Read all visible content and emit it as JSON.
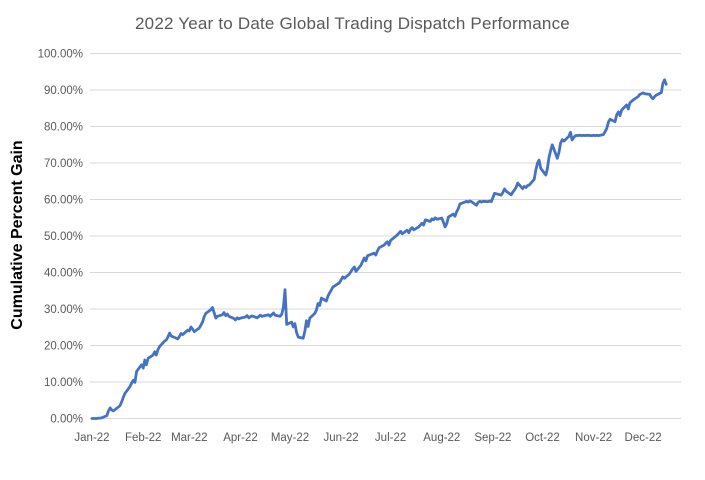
{
  "window": {
    "background_color": "#FFFFFF"
  },
  "chart_data": {
    "type": "line",
    "title": "2022 Year to Date Global Trading Dispatch Performance",
    "xlabel": "",
    "ylabel": "Cumulative Percent Gain",
    "legend": false,
    "grid": true,
    "gridline_color": "#D9D9D9",
    "title_color": "#595959",
    "tick_label_color": "#595959",
    "line_color": "#4472C4",
    "line_width": 2.8,
    "ylim": [
      0,
      100
    ],
    "y_tick_labels": [
      "0.00%",
      "10.00%",
      "20.00%",
      "30.00%",
      "40.00%",
      "50.00%",
      "60.00%",
      "70.00%",
      "80.00%",
      "90.00%",
      "100.00%"
    ],
    "x_tick_labels": [
      "Jan-22",
      "Feb-22",
      "Mar-22",
      "Apr-22",
      "May-22",
      "Jun-22",
      "Jul-22",
      "Aug-22",
      "Sep-22",
      "Oct-22",
      "Nov-22",
      "Dec-22"
    ],
    "x_tick_dates": [
      "2022-01-01",
      "2022-02-01",
      "2022-03-01",
      "2022-04-01",
      "2022-05-01",
      "2022-06-01",
      "2022-07-01",
      "2022-08-01",
      "2022-09-01",
      "2022-10-01",
      "2022-11-01",
      "2022-12-01"
    ],
    "series": [
      {
        "name": "Cumulative Percent Gain",
        "points": [
          [
            "2022-01-01",
            0.0
          ],
          [
            "2022-01-04",
            0.0
          ],
          [
            "2022-01-05",
            0.1
          ],
          [
            "2022-01-06",
            0.1
          ],
          [
            "2022-01-07",
            0.2
          ],
          [
            "2022-01-10",
            0.8
          ],
          [
            "2022-01-11",
            2.1
          ],
          [
            "2022-01-12",
            2.9
          ],
          [
            "2022-01-13",
            2.3
          ],
          [
            "2022-01-14",
            2.1
          ],
          [
            "2022-01-18",
            3.5
          ],
          [
            "2022-01-19",
            4.6
          ],
          [
            "2022-01-20",
            5.8
          ],
          [
            "2022-01-21",
            6.9
          ],
          [
            "2022-01-24",
            8.7
          ],
          [
            "2022-01-25",
            9.7
          ],
          [
            "2022-01-26",
            10.5
          ],
          [
            "2022-01-27",
            9.9
          ],
          [
            "2022-01-28",
            12.9
          ],
          [
            "2022-01-31",
            14.7
          ],
          [
            "2022-02-01",
            13.8
          ],
          [
            "2022-02-02",
            16.0
          ],
          [
            "2022-02-03",
            14.7
          ],
          [
            "2022-02-04",
            16.5
          ],
          [
            "2022-02-07",
            17.4
          ],
          [
            "2022-02-08",
            18.3
          ],
          [
            "2022-02-09",
            17.4
          ],
          [
            "2022-02-10",
            18.9
          ],
          [
            "2022-02-11",
            19.7
          ],
          [
            "2022-02-14",
            21.2
          ],
          [
            "2022-02-15",
            21.5
          ],
          [
            "2022-02-16",
            22.3
          ],
          [
            "2022-02-17",
            23.4
          ],
          [
            "2022-02-18",
            22.6
          ],
          [
            "2022-02-22",
            21.8
          ],
          [
            "2022-02-23",
            22.5
          ],
          [
            "2022-02-24",
            23.3
          ],
          [
            "2022-02-25",
            23.0
          ],
          [
            "2022-02-28",
            24.2
          ],
          [
            "2022-03-01",
            24.0
          ],
          [
            "2022-03-02",
            25.1
          ],
          [
            "2022-03-03",
            24.5
          ],
          [
            "2022-03-04",
            23.8
          ],
          [
            "2022-03-07",
            24.8
          ],
          [
            "2022-03-08",
            25.6
          ],
          [
            "2022-03-09",
            26.5
          ],
          [
            "2022-03-10",
            27.9
          ],
          [
            "2022-03-11",
            28.8
          ],
          [
            "2022-03-14",
            29.8
          ],
          [
            "2022-03-15",
            30.4
          ],
          [
            "2022-03-16",
            29.0
          ],
          [
            "2022-03-17",
            27.5
          ],
          [
            "2022-03-18",
            28.0
          ],
          [
            "2022-03-21",
            28.4
          ],
          [
            "2022-03-22",
            29.0
          ],
          [
            "2022-03-23",
            28.2
          ],
          [
            "2022-03-24",
            28.6
          ],
          [
            "2022-03-25",
            28.0
          ],
          [
            "2022-03-28",
            27.4
          ],
          [
            "2022-03-29",
            27.0
          ],
          [
            "2022-03-30",
            27.6
          ],
          [
            "2022-03-31",
            27.3
          ],
          [
            "2022-04-01",
            27.5
          ],
          [
            "2022-04-04",
            27.8
          ],
          [
            "2022-04-05",
            28.2
          ],
          [
            "2022-04-06",
            27.6
          ],
          [
            "2022-04-07",
            27.9
          ],
          [
            "2022-04-08",
            28.1
          ],
          [
            "2022-04-11",
            27.6
          ],
          [
            "2022-04-12",
            27.9
          ],
          [
            "2022-04-13",
            28.3
          ],
          [
            "2022-04-14",
            28.0
          ],
          [
            "2022-04-18",
            28.4
          ],
          [
            "2022-04-19",
            28.0
          ],
          [
            "2022-04-20",
            28.5
          ],
          [
            "2022-04-21",
            28.9
          ],
          [
            "2022-04-22",
            28.3
          ],
          [
            "2022-04-25",
            28.0
          ],
          [
            "2022-04-26",
            28.6
          ],
          [
            "2022-04-27",
            30.5
          ],
          [
            "2022-04-28",
            35.3
          ],
          [
            "2022-04-29",
            25.8
          ],
          [
            "2022-05-02",
            26.4
          ],
          [
            "2022-05-03",
            25.1
          ],
          [
            "2022-05-04",
            26.0
          ],
          [
            "2022-05-05",
            23.5
          ],
          [
            "2022-05-06",
            22.3
          ],
          [
            "2022-05-09",
            22.0
          ],
          [
            "2022-05-10",
            24.0
          ],
          [
            "2022-05-11",
            26.8
          ],
          [
            "2022-05-12",
            25.2
          ],
          [
            "2022-05-13",
            27.5
          ],
          [
            "2022-05-16",
            28.8
          ],
          [
            "2022-05-17",
            29.7
          ],
          [
            "2022-05-18",
            31.5
          ],
          [
            "2022-05-19",
            31.0
          ],
          [
            "2022-05-20",
            33.0
          ],
          [
            "2022-05-23",
            32.2
          ],
          [
            "2022-05-24",
            33.5
          ],
          [
            "2022-05-25",
            34.4
          ],
          [
            "2022-05-26",
            35.2
          ],
          [
            "2022-05-27",
            36.0
          ],
          [
            "2022-05-31",
            37.2
          ],
          [
            "2022-06-01",
            38.0
          ],
          [
            "2022-06-02",
            38.8
          ],
          [
            "2022-06-03",
            38.4
          ],
          [
            "2022-06-06",
            39.6
          ],
          [
            "2022-06-07",
            40.3
          ],
          [
            "2022-06-08",
            41.0
          ],
          [
            "2022-06-09",
            41.5
          ],
          [
            "2022-06-10",
            40.3
          ],
          [
            "2022-06-13",
            42.0
          ],
          [
            "2022-06-14",
            43.0
          ],
          [
            "2022-06-15",
            44.0
          ],
          [
            "2022-06-16",
            43.2
          ],
          [
            "2022-06-17",
            44.6
          ],
          [
            "2022-06-21",
            45.3
          ],
          [
            "2022-06-22",
            44.8
          ],
          [
            "2022-06-23",
            45.9
          ],
          [
            "2022-06-24",
            46.8
          ],
          [
            "2022-06-27",
            47.5
          ],
          [
            "2022-06-28",
            48.0
          ],
          [
            "2022-06-29",
            48.4
          ],
          [
            "2022-06-30",
            47.5
          ],
          [
            "2022-07-01",
            48.8
          ],
          [
            "2022-07-05",
            50.3
          ],
          [
            "2022-07-06",
            50.8
          ],
          [
            "2022-07-07",
            51.3
          ],
          [
            "2022-07-08",
            50.6
          ],
          [
            "2022-07-11",
            51.6
          ],
          [
            "2022-07-12",
            50.9
          ],
          [
            "2022-07-13",
            51.8
          ],
          [
            "2022-07-14",
            52.3
          ],
          [
            "2022-07-15",
            51.7
          ],
          [
            "2022-07-18",
            52.5
          ],
          [
            "2022-07-19",
            53.0
          ],
          [
            "2022-07-20",
            53.5
          ],
          [
            "2022-07-21",
            53.0
          ],
          [
            "2022-07-22",
            54.4
          ],
          [
            "2022-07-25",
            54.0
          ],
          [
            "2022-07-26",
            54.7
          ],
          [
            "2022-07-27",
            54.4
          ],
          [
            "2022-07-28",
            55.0
          ],
          [
            "2022-07-29",
            54.6
          ],
          [
            "2022-08-01",
            54.9
          ],
          [
            "2022-08-02",
            53.8
          ],
          [
            "2022-08-03",
            52.5
          ],
          [
            "2022-08-04",
            53.4
          ],
          [
            "2022-08-05",
            55.2
          ],
          [
            "2022-08-08",
            56.0
          ],
          [
            "2022-08-09",
            55.4
          ],
          [
            "2022-08-10",
            56.6
          ],
          [
            "2022-08-11",
            57.5
          ],
          [
            "2022-08-12",
            58.8
          ],
          [
            "2022-08-15",
            59.3
          ],
          [
            "2022-08-16",
            59.5
          ],
          [
            "2022-08-17",
            59.3
          ],
          [
            "2022-08-18",
            59.6
          ],
          [
            "2022-08-19",
            59.4
          ],
          [
            "2022-08-22",
            58.4
          ],
          [
            "2022-08-23",
            59.2
          ],
          [
            "2022-08-24",
            59.5
          ],
          [
            "2022-08-25",
            59.3
          ],
          [
            "2022-08-26",
            59.5
          ],
          [
            "2022-08-29",
            59.4
          ],
          [
            "2022-08-30",
            59.6
          ],
          [
            "2022-08-31",
            59.4
          ],
          [
            "2022-09-01",
            60.5
          ],
          [
            "2022-09-02",
            61.7
          ],
          [
            "2022-09-06",
            61.2
          ],
          [
            "2022-09-07",
            61.9
          ],
          [
            "2022-09-08",
            62.9
          ],
          [
            "2022-09-09",
            62.3
          ],
          [
            "2022-09-12",
            61.3
          ],
          [
            "2022-09-13",
            62.0
          ],
          [
            "2022-09-14",
            62.6
          ],
          [
            "2022-09-15",
            63.3
          ],
          [
            "2022-09-16",
            64.5
          ],
          [
            "2022-09-19",
            63.0
          ],
          [
            "2022-09-20",
            63.6
          ],
          [
            "2022-09-21",
            63.3
          ],
          [
            "2022-09-22",
            63.8
          ],
          [
            "2022-09-23",
            64.0
          ],
          [
            "2022-09-26",
            65.5
          ],
          [
            "2022-09-27",
            68.0
          ],
          [
            "2022-09-28",
            70.0
          ],
          [
            "2022-09-29",
            70.8
          ],
          [
            "2022-09-30",
            68.5
          ],
          [
            "2022-10-03",
            66.7
          ],
          [
            "2022-10-04",
            68.5
          ],
          [
            "2022-10-05",
            71.5
          ],
          [
            "2022-10-06",
            73.5
          ],
          [
            "2022-10-07",
            75.0
          ],
          [
            "2022-10-10",
            71.3
          ],
          [
            "2022-10-11",
            73.0
          ],
          [
            "2022-10-12",
            75.5
          ],
          [
            "2022-10-13",
            76.4
          ],
          [
            "2022-10-14",
            76.0
          ],
          [
            "2022-10-17",
            77.3
          ],
          [
            "2022-10-18",
            78.4
          ],
          [
            "2022-10-19",
            76.3
          ],
          [
            "2022-10-20",
            77.0
          ],
          [
            "2022-10-21",
            77.5
          ],
          [
            "2022-10-24",
            77.6
          ],
          [
            "2022-10-25",
            77.5
          ],
          [
            "2022-10-26",
            77.6
          ],
          [
            "2022-10-27",
            77.5
          ],
          [
            "2022-10-28",
            77.6
          ],
          [
            "2022-10-31",
            77.5
          ],
          [
            "2022-11-01",
            77.6
          ],
          [
            "2022-11-02",
            77.5
          ],
          [
            "2022-11-03",
            77.6
          ],
          [
            "2022-11-04",
            77.5
          ],
          [
            "2022-11-07",
            77.8
          ],
          [
            "2022-11-08",
            78.6
          ],
          [
            "2022-11-09",
            79.5
          ],
          [
            "2022-11-10",
            81.2
          ],
          [
            "2022-11-11",
            82.0
          ],
          [
            "2022-11-14",
            81.3
          ],
          [
            "2022-11-15",
            83.2
          ],
          [
            "2022-11-16",
            84.0
          ],
          [
            "2022-11-17",
            83.0
          ],
          [
            "2022-11-18",
            84.5
          ],
          [
            "2022-11-21",
            85.9
          ],
          [
            "2022-11-22",
            84.8
          ],
          [
            "2022-11-23",
            86.5
          ],
          [
            "2022-11-25",
            87.3
          ],
          [
            "2022-11-28",
            88.2
          ],
          [
            "2022-11-29",
            88.8
          ],
          [
            "2022-11-30",
            89.0
          ],
          [
            "2022-12-01",
            89.2
          ],
          [
            "2022-12-02",
            89.0
          ],
          [
            "2022-12-05",
            88.8
          ],
          [
            "2022-12-06",
            88.0
          ],
          [
            "2022-12-07",
            87.6
          ],
          [
            "2022-12-08",
            88.2
          ],
          [
            "2022-12-09",
            88.6
          ],
          [
            "2022-12-12",
            89.3
          ],
          [
            "2022-12-13",
            91.8
          ],
          [
            "2022-12-14",
            92.8
          ],
          [
            "2022-12-15",
            91.6
          ]
        ]
      }
    ]
  }
}
